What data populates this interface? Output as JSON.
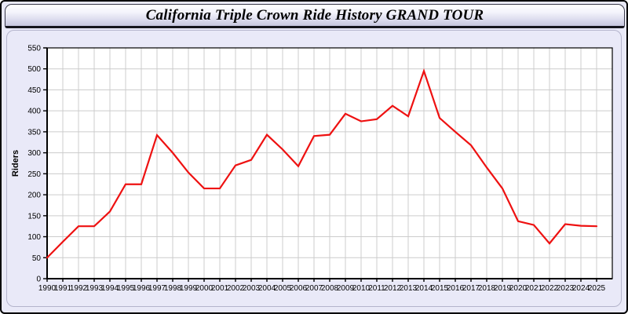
{
  "title": "California Triple Crown Ride History GRAND TOUR",
  "colors": {
    "page_bg": "#e9e9f8",
    "panel_bg": "#e9e9f8",
    "plot_bg": "#ffffff",
    "grid": "#cccccc",
    "axis": "#000000",
    "tick_label": "#000000",
    "line": "#ee1111",
    "title_text": "#000000"
  },
  "chart_data": {
    "type": "line",
    "title": "California Triple Crown Ride History GRAND TOUR",
    "xlabel": "",
    "ylabel": "Riders",
    "ylim": [
      0,
      550
    ],
    "ytick_step": 50,
    "grid": true,
    "legend": false,
    "categories": [
      1990,
      1991,
      1992,
      1993,
      1994,
      1995,
      1996,
      1997,
      1998,
      1999,
      2000,
      2001,
      2002,
      2003,
      2004,
      2005,
      2006,
      2007,
      2008,
      2009,
      2010,
      2011,
      2012,
      2013,
      2014,
      2015,
      2016,
      2017,
      2018,
      2019,
      2020,
      2021,
      2022,
      2023,
      2024,
      2025
    ],
    "series": [
      {
        "name": "Riders",
        "color": "#ee1111",
        "values": [
          50,
          88,
          125,
          125,
          160,
          225,
          225,
          342,
          300,
          253,
          215,
          215,
          270,
          283,
          343,
          308,
          268,
          340,
          343,
          393,
          375,
          380,
          412,
          387,
          495,
          383,
          350,
          318,
          265,
          215,
          137,
          128,
          84,
          130,
          126,
          125
        ]
      }
    ]
  }
}
